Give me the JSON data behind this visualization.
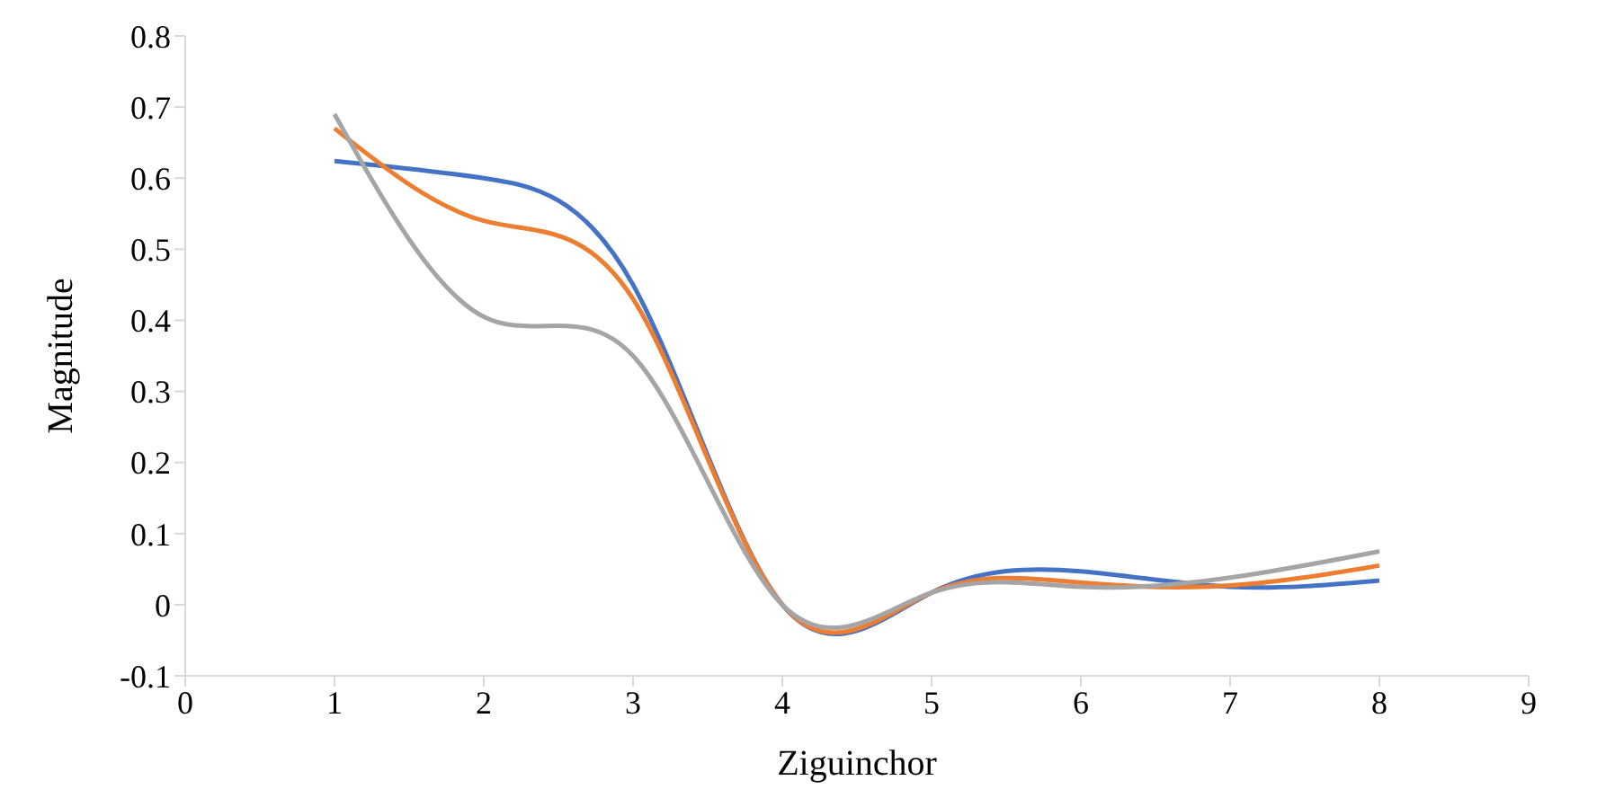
{
  "chart_data": {
    "type": "line",
    "xlabel": "Ziguinchor",
    "ylabel": "Magnitude",
    "x": [
      1,
      2,
      3,
      4,
      5,
      6,
      7,
      8
    ],
    "series": [
      {
        "color": "#4472c4",
        "values": [
          0.624,
          0.6,
          0.45,
          0.0,
          0.017,
          0.047,
          0.025,
          0.034
        ]
      },
      {
        "color": "#ed7d31",
        "values": [
          0.67,
          0.54,
          0.43,
          0.0,
          0.017,
          0.031,
          0.027,
          0.055
        ]
      },
      {
        "color": "#a5a5a5",
        "values": [
          0.69,
          0.405,
          0.35,
          0.0,
          0.017,
          0.025,
          0.038,
          0.075
        ]
      }
    ],
    "xlim": [
      0,
      9
    ],
    "xticks": [
      0,
      1,
      2,
      3,
      4,
      5,
      6,
      7,
      8,
      9
    ],
    "ylim": [
      -0.1,
      0.8
    ],
    "yticks": [
      -0.1,
      0,
      0.1,
      0.2,
      0.3,
      0.4,
      0.5,
      0.6,
      0.7,
      0.8
    ],
    "grid": false,
    "legend": false,
    "marker": "none",
    "line_style": "solid"
  }
}
